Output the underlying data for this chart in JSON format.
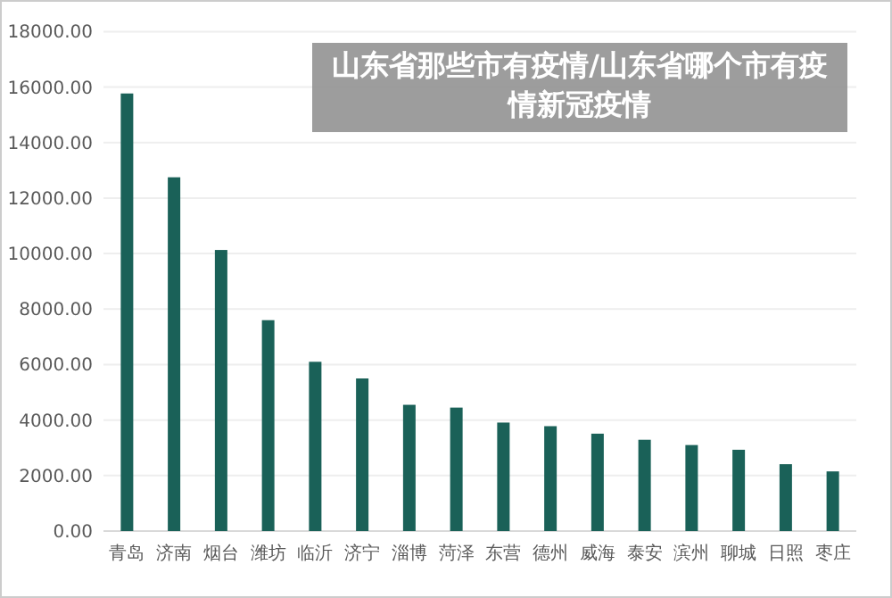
{
  "chart_data": {
    "type": "bar",
    "title": "山东省那些市有疫情/山东省哪个市有疫情新冠疫情",
    "categories": [
      "青岛",
      "济南",
      "烟台",
      "潍坊",
      "临沂",
      "济宁",
      "淄博",
      "菏泽",
      "东营",
      "德州",
      "威海",
      "泰安",
      "滨州",
      "聊城",
      "日照",
      "枣庄"
    ],
    "values": [
      15770,
      12750,
      10130,
      7600,
      6100,
      5500,
      4550,
      4450,
      3910,
      3780,
      3510,
      3290,
      3100,
      2930,
      2410,
      2150
    ],
    "color": "#1a6158",
    "ylim": [
      0,
      18000
    ],
    "yticks": [
      {
        "value": 0,
        "label": "0.00"
      },
      {
        "value": 2000,
        "label": "2000.00"
      },
      {
        "value": 4000,
        "label": "4000.00"
      },
      {
        "value": 6000,
        "label": "6000.00"
      },
      {
        "value": 8000,
        "label": "8000.00"
      },
      {
        "value": 10000,
        "label": "10000.00"
      },
      {
        "value": 12000,
        "label": "12000.00"
      },
      {
        "value": 14000,
        "label": "14000.00"
      },
      {
        "value": 16000,
        "label": "16000.00"
      },
      {
        "value": 18000,
        "label": "18000.00"
      }
    ],
    "grid": "y"
  }
}
